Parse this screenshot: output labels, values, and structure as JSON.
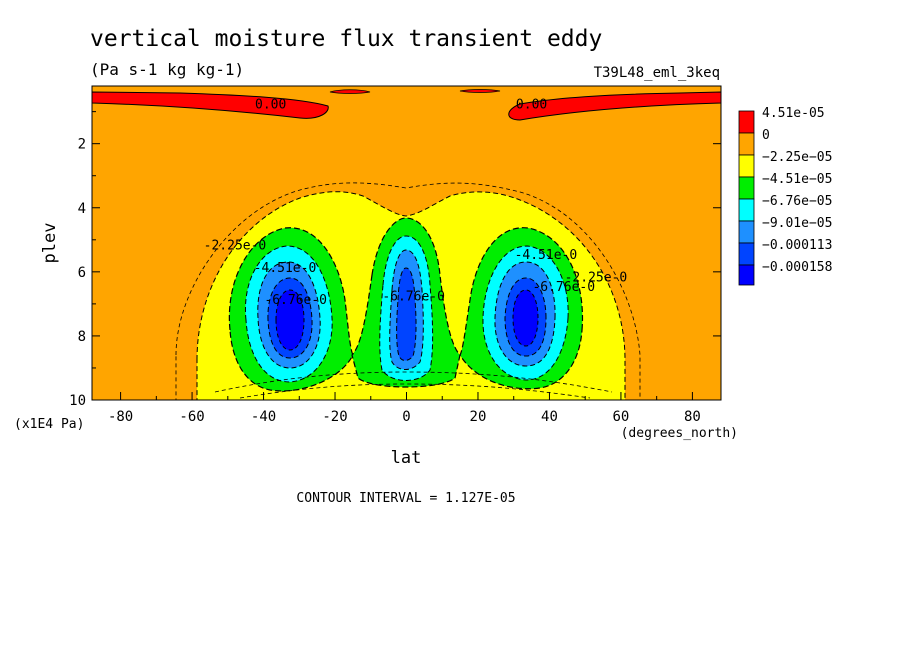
{
  "chart_data": {
    "type": "contour",
    "title": "vertical moisture flux transient eddy",
    "units": "(Pa s-1 kg kg-1)",
    "run_label": "T39L48_eml_3keq",
    "xlabel": "lat",
    "x_units": "(degrees_north)",
    "ylabel": "plev",
    "y_units": "(x1E4 Pa)",
    "xlim": [
      -88,
      88
    ],
    "ylim": [
      10,
      0.2
    ],
    "x_ticks": [
      -80,
      -60,
      -40,
      -20,
      0,
      20,
      40,
      60,
      80
    ],
    "x_tick_labels": [
      "-80",
      "-60",
      "-40",
      "-20",
      "0",
      "20",
      "40",
      "60",
      "80"
    ],
    "y_ticks": [
      2,
      4,
      6,
      8,
      10
    ],
    "y_tick_labels": [
      "2",
      "4",
      "6",
      "8",
      "10"
    ],
    "contour_interval_text": "CONTOUR INTERVAL = 1.127E-05",
    "legend": {
      "placement": "right",
      "levels": [
        {
          "label": "4.51e-05",
          "color": "#ff0000"
        },
        {
          "label": "0",
          "color": "#ffa500"
        },
        {
          "label": "−2.25e−05",
          "color": "#ffff00"
        },
        {
          "label": "−4.51e−05",
          "color": "#00ee00"
        },
        {
          "label": "−6.76e−05",
          "color": "#00ffff"
        },
        {
          "label": "−9.01e−05",
          "color": "#1e90ff"
        },
        {
          "label": "−0.000113",
          "color": "#0044ff"
        },
        {
          "label": "−0.000158",
          "color": "#0000ff"
        }
      ]
    },
    "contour_labels": [
      {
        "text": "0.00",
        "lat": -38,
        "plev": 0.9
      },
      {
        "text": "0.00",
        "lat": 35,
        "plev": 0.9
      },
      {
        "text": "-2.25e-0",
        "lat": -48,
        "plev": 5.3
      },
      {
        "text": "-4.51e-0",
        "lat": -34,
        "plev": 6.0
      },
      {
        "text": "-6.76e-0",
        "lat": -31,
        "plev": 7.0
      },
      {
        "text": "-6.76e-0",
        "lat": 2,
        "plev": 6.9
      },
      {
        "text": "-4.51e-0",
        "lat": 39,
        "plev": 5.6
      },
      {
        "text": "-6.76e-0",
        "lat": 44,
        "plev": 6.6
      },
      {
        "text": "-2.25e-0",
        "lat": 53,
        "plev": 6.3
      }
    ],
    "cells": [
      {
        "lat": -34,
        "plev": 7.7,
        "depth": 7
      },
      {
        "lat": 0,
        "plev": 7.6,
        "depth": 6
      },
      {
        "lat": 33,
        "plev": 7.4,
        "depth": 7
      }
    ]
  }
}
